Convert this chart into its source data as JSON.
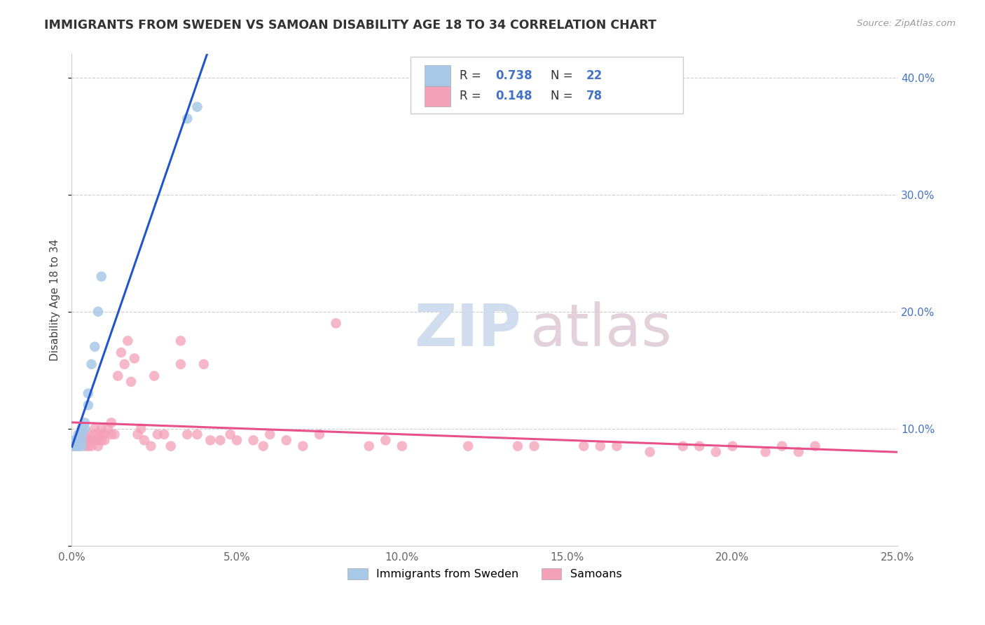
{
  "title": "IMMIGRANTS FROM SWEDEN VS SAMOAN DISABILITY AGE 18 TO 34 CORRELATION CHART",
  "source": "Source: ZipAtlas.com",
  "ylabel": "Disability Age 18 to 34",
  "xlim": [
    0.0,
    0.25
  ],
  "ylim": [
    0.0,
    0.42
  ],
  "xticks": [
    0.0,
    0.05,
    0.1,
    0.15,
    0.2,
    0.25
  ],
  "xticklabels": [
    "0.0%",
    "5.0%",
    "10.0%",
    "15.0%",
    "20.0%",
    "25.0%"
  ],
  "yticks": [
    0.0,
    0.1,
    0.2,
    0.3,
    0.4
  ],
  "yticklabels_right": [
    "",
    "10.0%",
    "20.0%",
    "30.0%",
    "40.0%"
  ],
  "R_sweden": "0.738",
  "N_sweden": "22",
  "R_samoans": "0.148",
  "N_samoans": "78",
  "sweden_color": "#a8c8e8",
  "samoan_color": "#f4a0b8",
  "sweden_line_color": "#2255cc",
  "samoan_line_color": "#e8508a",
  "sweden_x": [
    0.0005,
    0.001,
    0.001,
    0.0015,
    0.002,
    0.002,
    0.002,
    0.0025,
    0.003,
    0.003,
    0.003,
    0.003,
    0.004,
    0.004,
    0.005,
    0.005,
    0.006,
    0.007,
    0.008,
    0.009,
    0.035,
    0.038
  ],
  "sweden_y": [
    0.085,
    0.085,
    0.09,
    0.09,
    0.095,
    0.085,
    0.09,
    0.095,
    0.085,
    0.09,
    0.095,
    0.1,
    0.1,
    0.105,
    0.12,
    0.13,
    0.155,
    0.17,
    0.2,
    0.23,
    0.365,
    0.375
  ],
  "samoan_x": [
    0.001,
    0.001,
    0.002,
    0.002,
    0.003,
    0.003,
    0.004,
    0.004,
    0.004,
    0.005,
    0.005,
    0.005,
    0.005,
    0.006,
    0.006,
    0.007,
    0.007,
    0.007,
    0.008,
    0.008,
    0.008,
    0.009,
    0.009,
    0.009,
    0.01,
    0.01,
    0.011,
    0.012,
    0.012,
    0.013,
    0.014,
    0.015,
    0.016,
    0.017,
    0.018,
    0.019,
    0.02,
    0.021,
    0.022,
    0.024,
    0.025,
    0.026,
    0.028,
    0.03,
    0.033,
    0.033,
    0.035,
    0.038,
    0.04,
    0.042,
    0.045,
    0.048,
    0.05,
    0.055,
    0.058,
    0.06,
    0.065,
    0.07,
    0.075,
    0.08,
    0.09,
    0.095,
    0.1,
    0.12,
    0.135,
    0.14,
    0.155,
    0.16,
    0.165,
    0.175,
    0.185,
    0.19,
    0.195,
    0.2,
    0.21,
    0.215,
    0.22,
    0.225
  ],
  "samoan_y": [
    0.085,
    0.09,
    0.09,
    0.085,
    0.09,
    0.095,
    0.085,
    0.09,
    0.095,
    0.085,
    0.09,
    0.09,
    0.095,
    0.085,
    0.09,
    0.09,
    0.095,
    0.1,
    0.085,
    0.09,
    0.095,
    0.09,
    0.095,
    0.1,
    0.09,
    0.095,
    0.1,
    0.095,
    0.105,
    0.095,
    0.145,
    0.165,
    0.155,
    0.175,
    0.14,
    0.16,
    0.095,
    0.1,
    0.09,
    0.085,
    0.145,
    0.095,
    0.095,
    0.085,
    0.175,
    0.155,
    0.095,
    0.095,
    0.155,
    0.09,
    0.09,
    0.095,
    0.09,
    0.09,
    0.085,
    0.095,
    0.09,
    0.085,
    0.095,
    0.19,
    0.085,
    0.09,
    0.085,
    0.085,
    0.085,
    0.085,
    0.085,
    0.085,
    0.085,
    0.08,
    0.085,
    0.085,
    0.08,
    0.085,
    0.08,
    0.085,
    0.08,
    0.085
  ],
  "sweden_trendline_x": [
    0.0,
    0.25
  ],
  "samoan_trendline_x": [
    0.0,
    0.25
  ],
  "grid_color": "#cccccc",
  "title_color": "#333333",
  "source_color": "#999999",
  "tick_color": "#666666",
  "right_tick_color": "#4472c4"
}
